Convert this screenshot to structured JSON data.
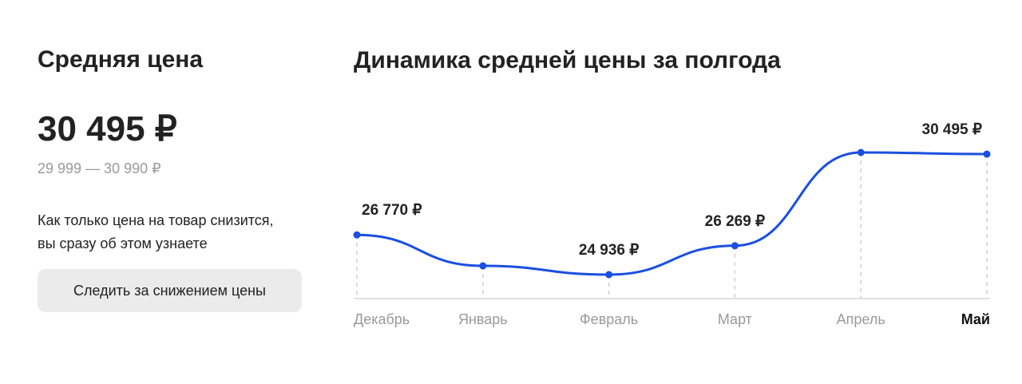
{
  "panel": {
    "title": "Средняя цена",
    "price": "30 495 ₽",
    "range": "29 999 — 30 990 ₽",
    "note": [
      "Как только цена на товар снизится,",
      "вы сразу об этом узнаете"
    ],
    "button": "Следить за снижением цены"
  },
  "chart_data": {
    "type": "line",
    "title": "Динамика средней цены за полгода",
    "categories": [
      "Декабрь",
      "Январь",
      "Февраль",
      "Март",
      "Апрель",
      "Май"
    ],
    "series": [
      {
        "name": "Средняя цена",
        "color": "#1a4fe0",
        "values": [
          26770,
          25340,
          24936,
          26269,
          30570,
          30495
        ],
        "value_labels": [
          "26 770 ₽",
          null,
          "24 936 ₽",
          "26 269 ₽",
          null,
          "30 495 ₽"
        ]
      }
    ]
  }
}
